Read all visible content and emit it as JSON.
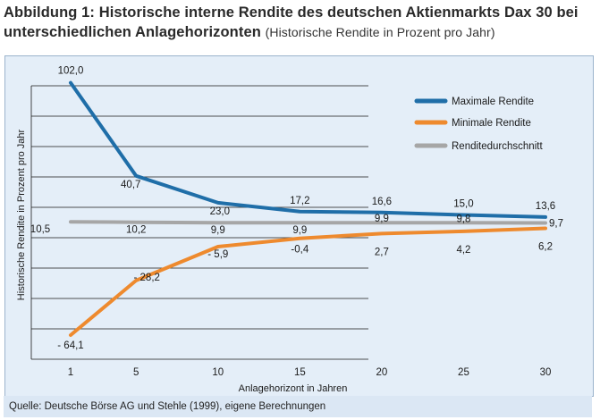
{
  "header": {
    "title_bold": "Abbildung 1: Historische interne Rendite des deutschen Aktienmarkts Dax 30 bei unterschiedlichen Anlagehorizonten",
    "title_sub": "(Historische Rendite in Prozent pro Jahr)"
  },
  "footer": {
    "source": "Quelle: Deutsche Börse AG und Stehle (1999), eigene Berechnungen"
  },
  "chart_data": {
    "type": "line",
    "title": "Abbildung 1: Historische interne Rendite des deutschen Aktienmarkts Dax 30 bei unterschiedlichen Anlagehorizonten",
    "subtitle": "(Historische Rendite in Prozent pro Jahr)",
    "xlabel": "Anlagehorizont in Jahren",
    "ylabel": "Historische Rendite in Prozent pro Jahr",
    "categories": [
      "1",
      "5",
      "10",
      "15",
      "20",
      "25",
      "30"
    ],
    "x": [
      1,
      5,
      10,
      15,
      20,
      25,
      30
    ],
    "ylim": [
      -80,
      110
    ],
    "grid": true,
    "legend_position": "top-right",
    "series": [
      {
        "name": "Maximale Rendite",
        "color": "#1f6ea8",
        "values": [
          102.0,
          40.7,
          23.0,
          17.2,
          16.6,
          15.0,
          13.6
        ],
        "labels": [
          "102,0",
          "40,7",
          "23,0",
          "17,2",
          "16,6",
          "15,0",
          "13,6"
        ]
      },
      {
        "name": "Minimale Rendite",
        "color": "#ee8a2e",
        "values": [
          -64.1,
          -28.2,
          -5.9,
          -0.4,
          2.7,
          4.2,
          6.2
        ],
        "labels": [
          "- 64,1",
          "- 28,2",
          "- 5,9",
          "-0,4",
          "2,7",
          "4,2",
          "6,2"
        ]
      },
      {
        "name": "Renditedurchschnitt",
        "color": "#a6a6a6",
        "values": [
          10.5,
          10.2,
          9.9,
          9.9,
          9.9,
          9.8,
          9.7
        ],
        "labels": [
          "10,5",
          "10,2",
          "9,9",
          "9,9",
          "9,9",
          "9,8",
          "9,7"
        ]
      }
    ]
  }
}
